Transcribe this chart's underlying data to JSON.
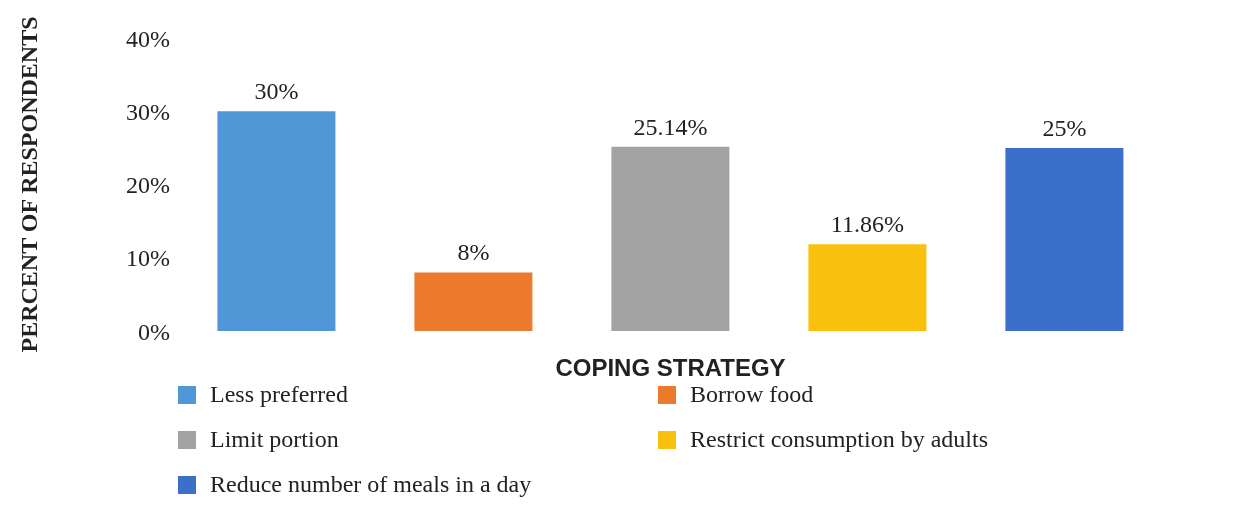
{
  "chart_data": {
    "type": "bar",
    "xlabel": "COPING STRATEGY",
    "ylabel": "PERCENT OF RESPONDENTS",
    "categories": [
      null,
      null,
      null,
      null,
      null
    ],
    "stacked": true,
    "ylim": [
      0,
      40
    ],
    "yticks": [
      {
        "value": 0,
        "label": "0%"
      },
      {
        "value": 10,
        "label": "10%"
      },
      {
        "value": 20,
        "label": "20%"
      },
      {
        "value": 30,
        "label": "30%"
      },
      {
        "value": 40,
        "label": "40%"
      }
    ],
    "grid": false,
    "legend": "bottom",
    "series": [
      {
        "name": "Less preferred",
        "color": "#4f97d6",
        "values": [
          30,
          null,
          null,
          null,
          null
        ],
        "value_labels": [
          "30%",
          null,
          null,
          null,
          null
        ]
      },
      {
        "name": "Borrow food",
        "color": "#ec7a2c",
        "values": [
          null,
          8,
          null,
          null,
          null
        ],
        "value_labels": [
          null,
          "8%",
          null,
          null,
          null
        ]
      },
      {
        "name": "Limit portion",
        "color": "#a3a3a3",
        "values": [
          null,
          null,
          25.14,
          null,
          null
        ],
        "value_labels": [
          null,
          null,
          "25.14%",
          null,
          null
        ]
      },
      {
        "name": "Restrict consumption by adults",
        "color": "#f9c10e",
        "values": [
          null,
          null,
          null,
          11.86,
          null
        ],
        "value_labels": [
          null,
          null,
          null,
          "11.86%",
          null
        ]
      },
      {
        "name": "Reduce number of meals in a day",
        "color": "#3c6fcc",
        "values": [
          null,
          null,
          null,
          null,
          25
        ],
        "value_labels": [
          null,
          null,
          null,
          null,
          "25%"
        ]
      }
    ]
  }
}
